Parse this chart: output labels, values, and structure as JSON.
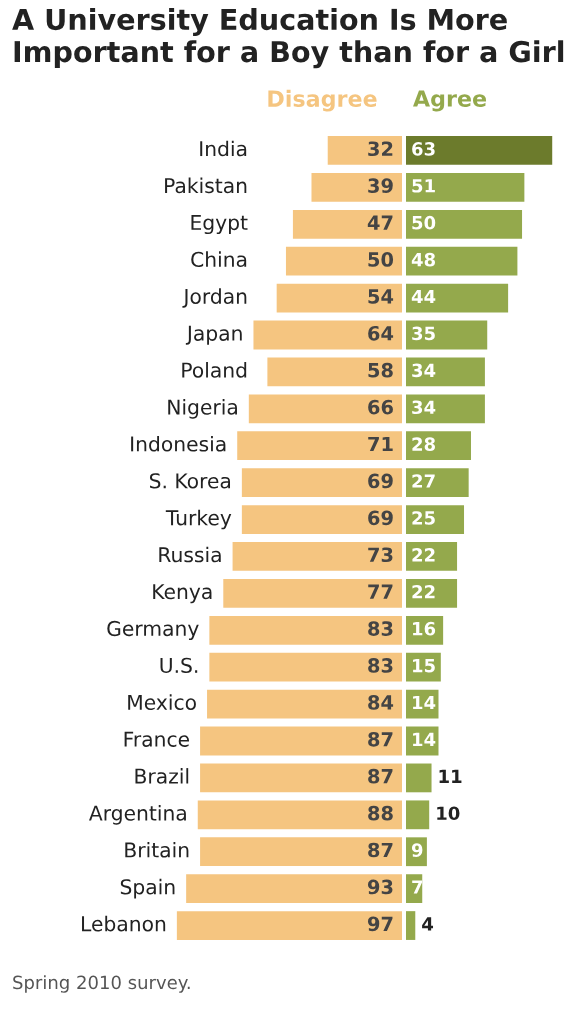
{
  "chart_data": [
    {
      "type": "bar",
      "orientation": "horizontal",
      "title": "A University Education Is More Important for a Boy than for a Girl",
      "categories": [
        "India",
        "Pakistan",
        "Egypt",
        "China",
        "Jordan",
        "Japan",
        "Poland",
        "Nigeria",
        "Indonesia",
        "S. Korea",
        "Turkey",
        "Russia",
        "Kenya",
        "Germany",
        "U.S.",
        "Mexico",
        "France",
        "Brazil",
        "Argentina",
        "Britain",
        "Spain",
        "Lebanon"
      ],
      "series": [
        {
          "name": "Disagree",
          "color": "#f5c580",
          "values": [
            32,
            39,
            47,
            50,
            54,
            64,
            58,
            66,
            71,
            69,
            69,
            73,
            77,
            83,
            83,
            84,
            87,
            87,
            88,
            87,
            93,
            97
          ]
        }
      ],
      "data_labels": true,
      "tick_labels": "y",
      "annotations": [
        "Spring 2010 survey."
      ]
    },
    {
      "type": "bar",
      "orientation": "horizontal",
      "categories": [
        null,
        null,
        null,
        null,
        null,
        null,
        null,
        null,
        null,
        null,
        null,
        null,
        null,
        null,
        null,
        null,
        null,
        null,
        null,
        null,
        null,
        null
      ],
      "series": [
        {
          "name": "Agree",
          "color": "#94a94c",
          "colors": [
            "#6c7b2c",
            "#94a94c",
            "#94a94c",
            "#94a94c",
            "#94a94c",
            "#94a94c",
            "#94a94c",
            "#94a94c",
            "#94a94c",
            "#94a94c",
            "#94a94c",
            "#94a94c",
            "#94a94c",
            "#94a94c",
            "#94a94c",
            "#94a94c",
            "#94a94c",
            "#94a94c",
            "#94a94c",
            "#94a94c",
            "#94a94c",
            "#94a94c"
          ],
          "values": [
            63,
            51,
            50,
            48,
            44,
            35,
            34,
            34,
            28,
            27,
            25,
            22,
            22,
            16,
            15,
            14,
            14,
            11,
            10,
            9,
            7,
            4
          ]
        }
      ],
      "data_labels": true,
      "tick_labels": false
    }
  ]
}
